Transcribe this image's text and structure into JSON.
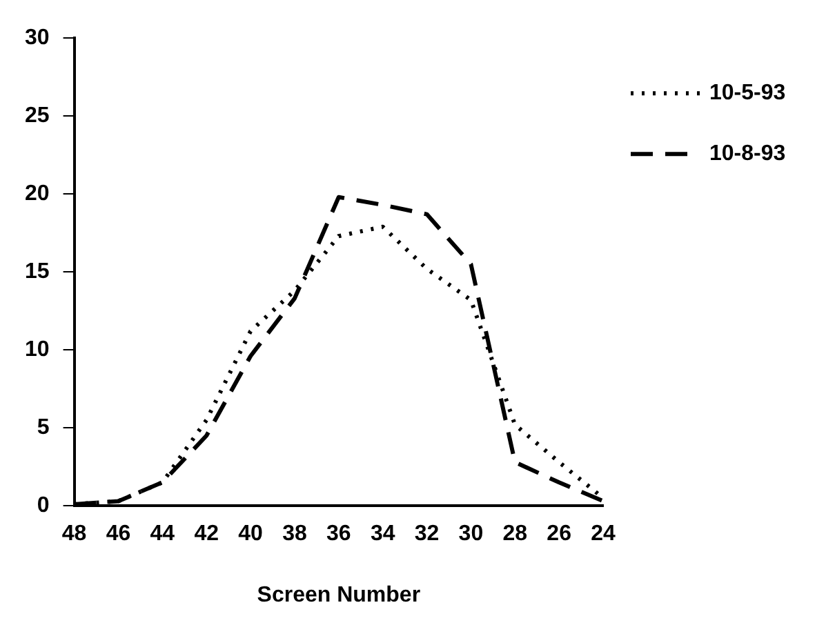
{
  "chart_data": {
    "type": "line",
    "xlabel": "Screen Number",
    "x": [
      48,
      46,
      44,
      42,
      40,
      38,
      36,
      34,
      32,
      30,
      28,
      26,
      24
    ],
    "series": [
      {
        "name": "10-5-93",
        "color": "#000000",
        "line_style": "dotted",
        "values": [
          0.1,
          0.3,
          1.5,
          5.5,
          11.2,
          13.8,
          17.3,
          17.9,
          15.2,
          13.2,
          5.2,
          2.8,
          0.5
        ]
      },
      {
        "name": "10-8-93",
        "color": "#000000",
        "line_style": "dashed",
        "values": [
          0.1,
          0.3,
          1.5,
          4.5,
          9.6,
          13.3,
          19.8,
          19.3,
          18.7,
          15.5,
          2.8,
          1.5,
          0.3
        ]
      }
    ],
    "xlim": [
      48,
      24
    ],
    "xticks": [
      48,
      46,
      44,
      42,
      40,
      38,
      36,
      34,
      32,
      30,
      28,
      26,
      24
    ],
    "ylim": [
      0,
      30
    ],
    "yticks": [
      0,
      5,
      10,
      15,
      20,
      25,
      30
    ],
    "grid": false,
    "legend": "top right",
    "marker": "none"
  }
}
